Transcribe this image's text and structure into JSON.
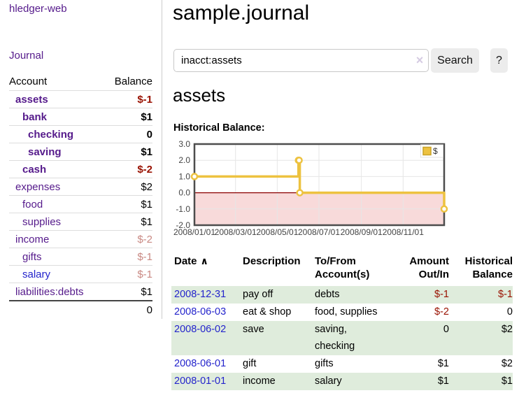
{
  "app": {
    "title": "hledger-web",
    "journal_nav": "Journal"
  },
  "sidebar": {
    "columns": {
      "account": "Account",
      "balance": "Balance"
    },
    "accounts": [
      {
        "name": "assets",
        "depth": 1,
        "bold": true,
        "balance": "$-1",
        "balance_style": "neg"
      },
      {
        "name": "bank",
        "depth": 2,
        "bold": true,
        "balance": "$1",
        "balance_style": "plain"
      },
      {
        "name": "checking",
        "depth": 3,
        "bold": true,
        "balance": "0",
        "balance_style": "plain"
      },
      {
        "name": "saving",
        "depth": 3,
        "bold": true,
        "balance": "$1",
        "balance_style": "plain"
      },
      {
        "name": "cash",
        "depth": 2,
        "bold": true,
        "balance": "$-2",
        "balance_style": "neg"
      },
      {
        "name": "expenses",
        "depth": 1,
        "bold": false,
        "balance": "$2",
        "balance_style": "plain"
      },
      {
        "name": "food",
        "depth": 2,
        "bold": false,
        "balance": "$1",
        "balance_style": "plain"
      },
      {
        "name": "supplies",
        "depth": 2,
        "bold": false,
        "balance": "$1",
        "balance_style": "plain"
      },
      {
        "name": "income",
        "depth": 1,
        "bold": false,
        "balance": "$-2",
        "balance_style": "neg-muted"
      },
      {
        "name": "gifts",
        "depth": 2,
        "bold": false,
        "balance": "$-1",
        "balance_style": "neg-muted"
      },
      {
        "name": "salary",
        "depth": 2,
        "bold": false,
        "name_style": "blue",
        "balance": "$-1",
        "balance_style": "neg-muted"
      },
      {
        "name": "liabilities:debts",
        "depth": 1,
        "bold": false,
        "balance": "$1",
        "balance_style": "plain"
      }
    ],
    "total": "0"
  },
  "main": {
    "title": "sample.journal",
    "search": {
      "value": "inacct:assets",
      "clear_icon": "×",
      "search_label": "Search",
      "help_label": "?"
    },
    "account_heading": "assets",
    "section_label": "Historical Balance:"
  },
  "chart_data": {
    "type": "line",
    "title": "Historical Balance",
    "step": true,
    "series": [
      {
        "name": "$",
        "color": "#edc240",
        "points": [
          [
            "2008-01-01",
            1
          ],
          [
            "2008-06-01",
            2
          ],
          [
            "2008-06-02",
            2
          ],
          [
            "2008-06-03",
            0
          ],
          [
            "2008-12-31",
            -1
          ]
        ]
      }
    ],
    "xlim": [
      "2008-01-01",
      "2008-12-31"
    ],
    "ylim": [
      -2,
      3
    ],
    "y_ticks": [
      "3.0",
      "2.0",
      "1.0",
      "0.0",
      "-1.0",
      "-2.0"
    ],
    "x_ticks": [
      {
        "label": "2008/01/01",
        "date": "2008-01-01"
      },
      {
        "label": "2008/03/01",
        "date": "2008-03-01"
      },
      {
        "label": "2008/05/01",
        "date": "2008-05-01"
      },
      {
        "label": "2008/07/01",
        "date": "2008-07-01"
      },
      {
        "label": "2008/09/01",
        "date": "2008-09-01"
      },
      {
        "label": "2008/11/01",
        "date": "2008-11-01"
      }
    ],
    "legend": {
      "label": "$",
      "position": "top-right"
    },
    "grid": true,
    "negative_region_color": "#f8dada",
    "zero_line_color": "#8b0000"
  },
  "register": {
    "headers": {
      "date": "Date",
      "date_sort_icon": "∧",
      "description": "Description",
      "accounts_line1": "To/From",
      "accounts_line2": "Account(s)",
      "amount_line1": "Amount",
      "amount_line2": "Out/In",
      "balance_line1": "Historical",
      "balance_line2": "Balance"
    },
    "rows": [
      {
        "date": "2008-12-31",
        "description": "pay off",
        "accounts": [
          "debts"
        ],
        "amount": "$-1",
        "amount_neg": true,
        "balance": "$-1",
        "balance_neg": true,
        "shaded": true
      },
      {
        "date": "2008-06-03",
        "description": "eat & shop",
        "accounts": [
          "food, supplies"
        ],
        "amount": "$-2",
        "amount_neg": true,
        "balance": "0",
        "balance_neg": false,
        "shaded": false
      },
      {
        "date": "2008-06-02",
        "description": "save",
        "accounts": [
          "saving,",
          "checking"
        ],
        "amount": "0",
        "amount_neg": false,
        "balance": "$2",
        "balance_neg": false,
        "shaded": true
      },
      {
        "date": "2008-06-01",
        "description": "gift",
        "accounts": [
          "gifts"
        ],
        "amount": "$1",
        "amount_neg": false,
        "balance": "$2",
        "balance_neg": false,
        "shaded": false
      },
      {
        "date": "2008-01-01",
        "description": "income",
        "accounts": [
          "salary"
        ],
        "amount": "$1",
        "amount_neg": false,
        "balance": "$1",
        "balance_neg": false,
        "shaded": true
      }
    ]
  },
  "colors": {
    "accent_purple": "#551a8b",
    "link_blue": "#2424cc",
    "negative": "#991100",
    "negative_muted": "#c98983",
    "row_green": "#dfecdc",
    "series_gold": "#edc240"
  }
}
